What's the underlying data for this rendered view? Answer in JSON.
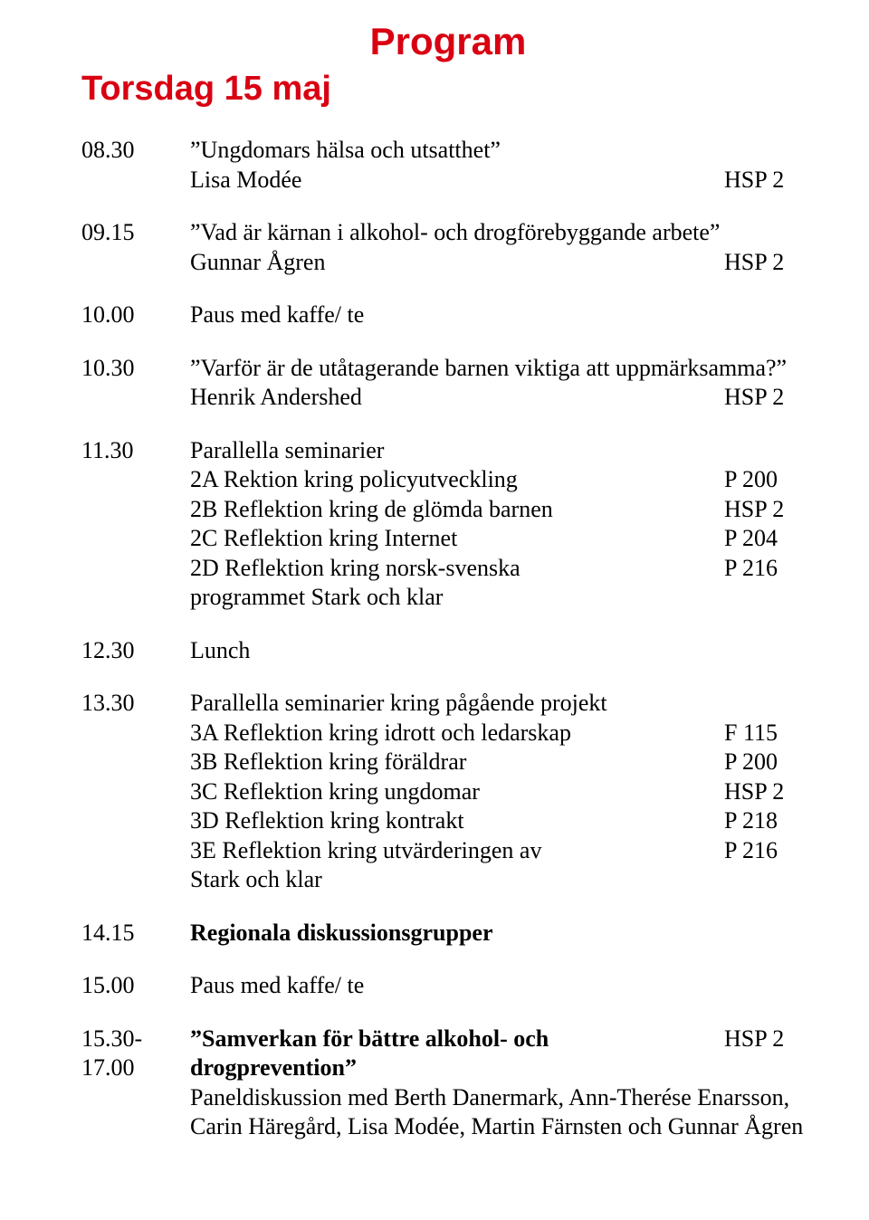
{
  "colors": {
    "accent": "#d90012",
    "text": "#000000",
    "background": "#ffffff"
  },
  "typography": {
    "body_family": "Garamond/serif",
    "body_size_pt": 20,
    "heading_family": "Arial Narrow",
    "title_size_pt": 32,
    "day_size_pt": 29
  },
  "title": "Program",
  "day": "Torsdag 15 maj",
  "items": [
    {
      "time": "08.30",
      "lines": [
        {
          "text": "”Ungdomars hälsa och utsatthet”",
          "room": ""
        },
        {
          "text": "Lisa Modée",
          "room": "HSP 2"
        }
      ]
    },
    {
      "time": "09.15",
      "lines": [
        {
          "text": "”Vad är kärnan i alkohol- och drogförebyggande arbete”",
          "room": ""
        },
        {
          "text": "Gunnar Ågren",
          "room": "HSP 2"
        }
      ]
    },
    {
      "time": "10.00",
      "lines": [
        {
          "text": "Paus med kaffe/ te",
          "room": ""
        }
      ]
    },
    {
      "time": "10.30",
      "lines": [
        {
          "text": "”Varför är de utåtagerande barnen viktiga att uppmärksamma?”",
          "room": ""
        },
        {
          "text": "Henrik Andershed",
          "room": "HSP 2"
        }
      ]
    },
    {
      "time": "11.30",
      "lines": [
        {
          "text": "Parallella seminarier",
          "room": ""
        },
        {
          "text": "2A Rektion kring policyutveckling",
          "room": "P 200"
        },
        {
          "text": "2B Reflektion kring de glömda barnen",
          "room": "HSP 2"
        },
        {
          "text": "2C Reflektion kring Internet",
          "room": "P 204"
        },
        {
          "text": "2D Reflektion kring norsk-svenska",
          "room": "P 216"
        },
        {
          "text": "programmet Stark och klar",
          "room": ""
        }
      ]
    },
    {
      "time": "12.30",
      "lines": [
        {
          "text": "Lunch",
          "room": ""
        }
      ]
    },
    {
      "time": "13.30",
      "lines": [
        {
          "text": "Parallella seminarier kring pågående projekt",
          "room": ""
        },
        {
          "text": "3A Reflektion kring idrott och ledarskap",
          "room": "F 115"
        },
        {
          "text": "3B Reflektion kring föräldrar",
          "room": "P 200"
        },
        {
          "text": "3C Reflektion kring ungdomar",
          "room": "HSP 2"
        },
        {
          "text": "3D Reflektion kring kontrakt",
          "room": "P 218"
        },
        {
          "text": "3E Reflektion kring utvärderingen av",
          "room": "P 216"
        },
        {
          "text": "Stark och klar",
          "room": ""
        }
      ]
    },
    {
      "time": "14.15",
      "bold": true,
      "lines": [
        {
          "text": "Regionala diskussionsgrupper",
          "room": ""
        }
      ]
    },
    {
      "time": "15.00",
      "lines": [
        {
          "text": "Paus med kaffe/ te",
          "room": ""
        }
      ]
    },
    {
      "time": "15.30-\n17.00",
      "lines": [
        {
          "text": "”Samverkan för bättre alkohol- och drogprevention”",
          "room": "HSP 2",
          "bold": true
        },
        {
          "text": "Paneldiskussion med Berth Danermark, Ann-Therése Enarsson,",
          "room": ""
        },
        {
          "text": "Carin Häregård, Lisa Modée, Martin Färnsten och Gunnar Ågren",
          "room": ""
        }
      ]
    }
  ]
}
